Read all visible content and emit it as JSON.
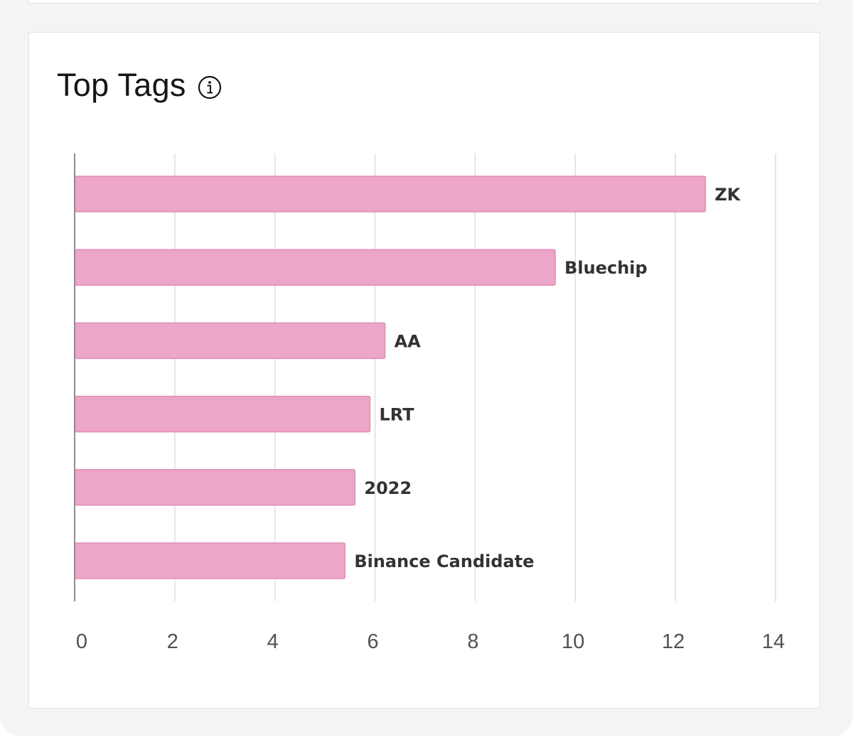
{
  "card": {
    "title": "Top Tags",
    "info_icon": "info-icon"
  },
  "colors": {
    "bar_fill": "#eba6c8",
    "bar_stroke": "#e48bb7",
    "grid": "#e0e0e0",
    "axis": "#8d8d8d",
    "label_text": "#333333",
    "tick_text": "#525252"
  },
  "chart_data": {
    "type": "bar",
    "orientation": "horizontal",
    "categories": [
      "ZK",
      "Bluechip",
      "AA",
      "LRT",
      "2022",
      "Binance Candidate"
    ],
    "values": [
      12.6,
      9.6,
      6.2,
      5.9,
      5.6,
      5.4
    ],
    "xlim": [
      0,
      14
    ],
    "xticks": [
      "0",
      "2",
      "4",
      "6",
      "8",
      "10",
      "12",
      "14"
    ],
    "grid": true,
    "legend": "none"
  }
}
